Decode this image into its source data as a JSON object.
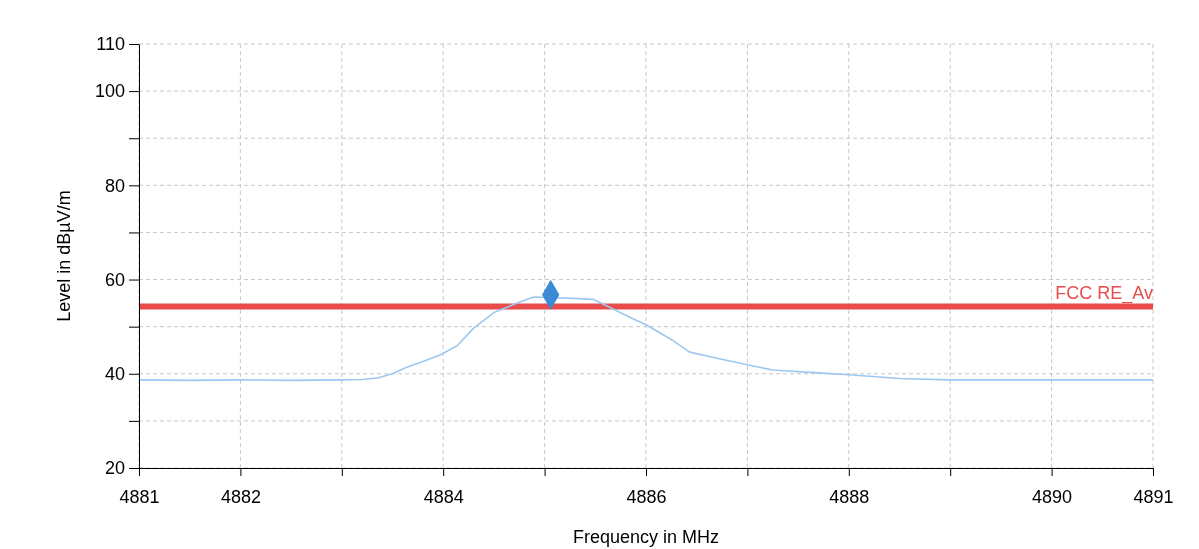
{
  "chart_data": {
    "type": "line",
    "xlabel": "Frequency in MHz",
    "ylabel": "Level in dBµV/m",
    "xlim": [
      4881,
      4891
    ],
    "ylim": [
      20,
      110
    ],
    "xticks": [
      4881,
      4882,
      {
        "value": 4883,
        "label": null
      },
      4884,
      {
        "value": 4885,
        "label": null
      },
      4886,
      {
        "value": 4887,
        "label": null
      },
      4888,
      {
        "value": 4889,
        "label": null
      },
      4890,
      4891
    ],
    "yticks": [
      20,
      {
        "value": 30,
        "label": null
      },
      40,
      {
        "value": 50,
        "label": null
      },
      60,
      {
        "value": 70,
        "label": null
      },
      80,
      {
        "value": 90,
        "label": null
      },
      100,
      110
    ],
    "grid": true,
    "line_style": "solid",
    "series": [
      {
        "color": "#9cc8f0",
        "x": [
          4881,
          4881.5,
          4882,
          4882.5,
          4883,
          4883.2,
          4883.35,
          4883.5,
          4883.64,
          4883.8,
          4883.97,
          4884.14,
          4884.3,
          4884.5,
          4884.73,
          4884.89,
          4885.28,
          4885.48,
          4885.65,
          4885.84,
          4886,
          4886.27,
          4886.43,
          4886.7,
          4887,
          4887.25,
          4887.7,
          4888,
          4888.5,
          4889,
          4890,
          4891
        ],
        "values": [
          38.7,
          38.6,
          38.7,
          38.6,
          38.7,
          38.8,
          39.1,
          40,
          41.4,
          42.6,
          44,
          46,
          49.7,
          53,
          55,
          56.3,
          56,
          55.8,
          54,
          52,
          50.4,
          47,
          44.6,
          43.3,
          41.9,
          40.8,
          40.2,
          39.8,
          39,
          38.7,
          38.7,
          38.7
        ]
      },
      {
        "type": "scatter",
        "color": "#3a8ad6",
        "marker": "diamond",
        "x": [
          4885.06
        ],
        "values": [
          56.8
        ]
      }
    ],
    "ref_lines": [
      {
        "axis": "y",
        "value": 54.3,
        "label": "FCC RE_Av",
        "color": "#e84c4c"
      }
    ]
  }
}
